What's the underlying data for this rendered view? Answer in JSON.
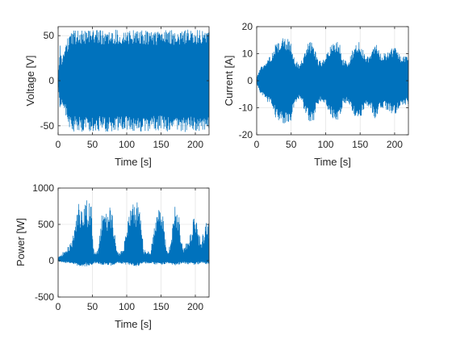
{
  "chart_data": [
    {
      "type": "line",
      "title": "",
      "xlabel": "Time [s]",
      "ylabel": "Voltage [V]",
      "xlim": [
        0,
        220
      ],
      "ylim": [
        -60,
        60
      ],
      "xticks": [
        0,
        50,
        100,
        150,
        200
      ],
      "yticks": [
        -50,
        0,
        50
      ],
      "grid": true,
      "color": "#0072BD",
      "series": [
        {
          "signal": "oscillating",
          "envelope": {
            "t": [
              0,
              3,
              5,
              10,
              15,
              20,
              25,
              40,
              60,
              75,
              100,
              125,
              150,
              160,
              170,
              185,
              200,
              210,
              215,
              220
            ],
            "upper": [
              5,
              40,
              25,
              35,
              50,
              57,
              56,
              57,
              56,
              57,
              56,
              57,
              55,
              57,
              56,
              57,
              56,
              57,
              57,
              57
            ],
            "lower": [
              -5,
              -40,
              -25,
              -35,
              -50,
              -57,
              -56,
              -57,
              -56,
              -57,
              -56,
              -57,
              -55,
              -57,
              -56,
              -57,
              -56,
              -57,
              -57,
              -57
            ]
          }
        }
      ]
    },
    {
      "type": "line",
      "title": "",
      "xlabel": "Time [s]",
      "ylabel": "Current [A]",
      "xlim": [
        0,
        220
      ],
      "ylim": [
        -20,
        20
      ],
      "xticks": [
        0,
        50,
        100,
        150,
        200
      ],
      "yticks": [
        -20,
        -10,
        0,
        10,
        20
      ],
      "grid": true,
      "color": "#0072BD",
      "series": [
        {
          "signal": "oscillating",
          "envelope": {
            "t": [
              0,
              5,
              10,
              15,
              20,
              28,
              40,
              50,
              55,
              62,
              68,
              75,
              82,
              88,
              95,
              105,
              115,
              120,
              125,
              132,
              145,
              150,
              158,
              165,
              172,
              180,
              190,
              200,
              210,
              215,
              220
            ],
            "upper": [
              1,
              5,
              6,
              8,
              9,
              14,
              16,
              15,
              8,
              6,
              9,
              14,
              15,
              8,
              7,
              12,
              15,
              14,
              8,
              7,
              15,
              14,
              9,
              10,
              15,
              10,
              11,
              13,
              9,
              9,
              9
            ],
            "lower": [
              -1,
              -5,
              -6,
              -8,
              -9,
              -14,
              -16,
              -15,
              -9,
              -7,
              -10,
              -15,
              -16,
              -9,
              -8,
              -12,
              -16,
              -15,
              -9,
              -8,
              -15,
              -14,
              -9,
              -10,
              -15,
              -10,
              -11,
              -13,
              -9,
              -9,
              -9
            ]
          }
        }
      ]
    },
    {
      "type": "line",
      "title": "",
      "xlabel": "Time [s]",
      "ylabel": "Power [W]",
      "xlim": [
        0,
        220
      ],
      "ylim": [
        -500,
        1000
      ],
      "xticks": [
        0,
        50,
        100,
        150,
        200
      ],
      "yticks": [
        -500,
        0,
        500,
        1000
      ],
      "grid": true,
      "color": "#0072BD",
      "series": [
        {
          "signal": "rectified",
          "envelope": {
            "t": [
              0,
              5,
              10,
              15,
              20,
              25,
              30,
              40,
              48,
              52,
              58,
              65,
              70,
              78,
              85,
              90,
              95,
              100,
              110,
              118,
              125,
              130,
              135,
              145,
              152,
              158,
              163,
              170,
              175,
              182,
              190,
              200,
              208,
              215,
              220
            ],
            "upper": [
              50,
              100,
              150,
              200,
              300,
              500,
              800,
              850,
              800,
              150,
              150,
              750,
              650,
              800,
              150,
              120,
              150,
              500,
              850,
              800,
              150,
              150,
              150,
              800,
              700,
              150,
              200,
              800,
              700,
              150,
              300,
              700,
              250,
              550,
              550
            ],
            "lower": [
              -10,
              -20,
              -30,
              -30,
              -40,
              -60,
              -80,
              -80,
              -70,
              -40,
              -40,
              -70,
              -60,
              -70,
              -40,
              -40,
              -40,
              -60,
              -80,
              -70,
              -40,
              -40,
              -40,
              -70,
              -60,
              -40,
              -40,
              -70,
              -60,
              -40,
              -50,
              -60,
              -40,
              -50,
              -50
            ]
          }
        }
      ]
    }
  ]
}
